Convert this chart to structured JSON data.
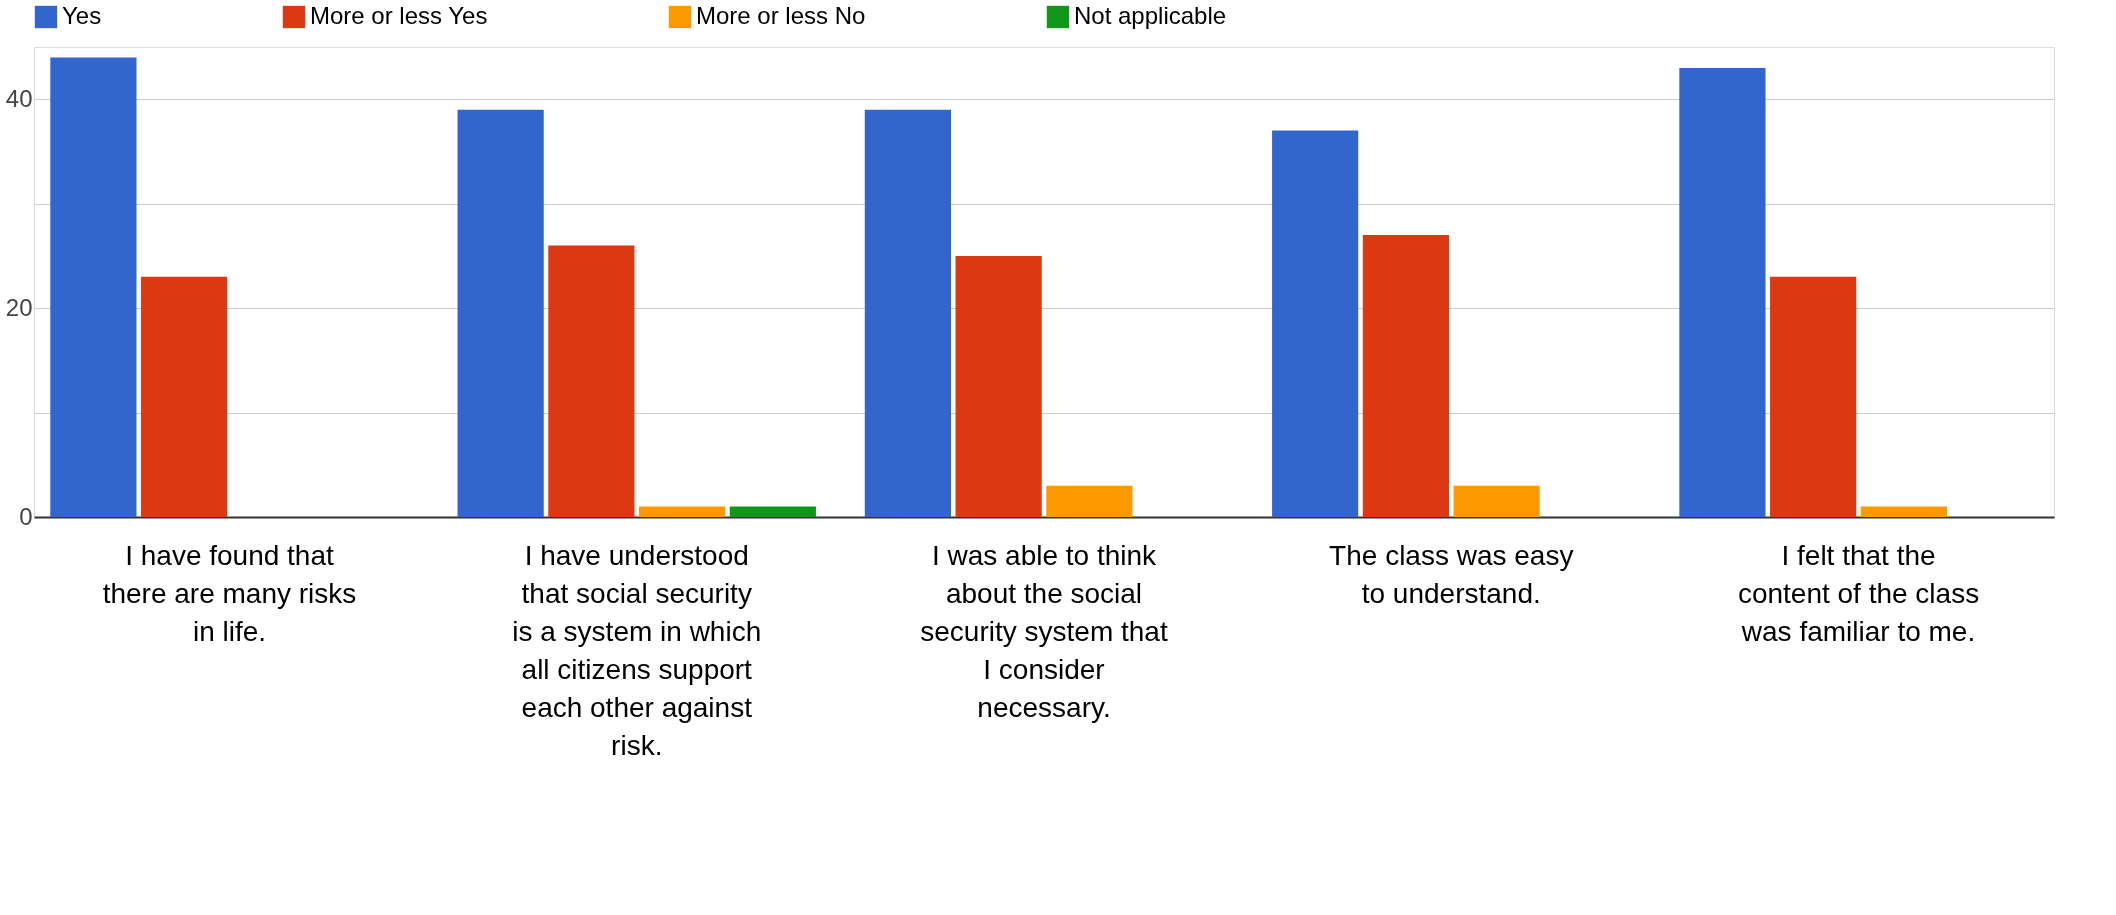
{
  "chart_data": {
    "type": "bar",
    "categories": [
      "I have found that there are many risks in life.",
      "I have understood that social security is a system in which all citizens support each other against risk.",
      "I was able to think about the social security system that I consider necessary.",
      "The class was easy to understand.",
      "I felt that the content of the class was familiar to me."
    ],
    "series": [
      {
        "name": "Yes",
        "color": "#3366cc",
        "values": [
          44,
          39,
          39,
          37,
          43
        ]
      },
      {
        "name": "More or less Yes",
        "color": "#dc3912",
        "values": [
          23,
          26,
          25,
          27,
          23
        ]
      },
      {
        "name": "More or less No",
        "color": "#ff9900",
        "values": [
          null,
          1,
          3,
          3,
          1
        ]
      },
      {
        "name": "Not applicable",
        "color": "#109618",
        "values": [
          null,
          1,
          null,
          null,
          null
        ]
      }
    ],
    "ylim": [
      0,
      45
    ],
    "yticks": [
      0,
      {
        "value": 10,
        "label": null
      },
      20,
      {
        "value": 30,
        "label": null
      },
      40
    ],
    "grid": "y",
    "legend": "top"
  }
}
